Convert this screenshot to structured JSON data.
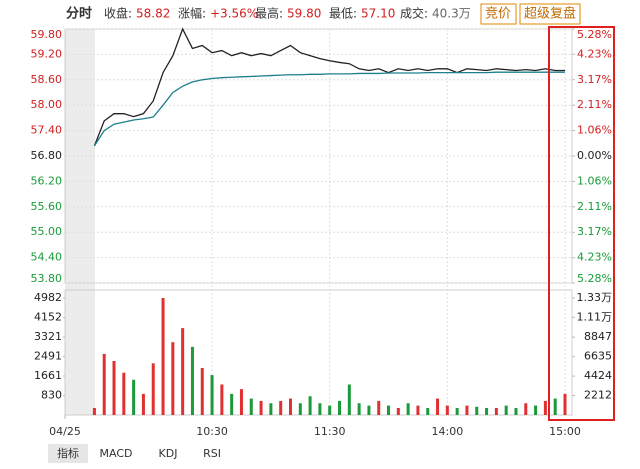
{
  "header": {
    "tab": "分时",
    "items": [
      {
        "label": "收盘:",
        "value": "58.82"
      },
      {
        "label": "涨幅:",
        "value": "+3.56%"
      },
      {
        "label": "最高:",
        "value": "59.80"
      },
      {
        "label": "最低:",
        "value": "57.10"
      },
      {
        "label": "成交:",
        "value": "40.3万"
      }
    ],
    "buttons": [
      "竞价",
      "超级复盘"
    ]
  },
  "tabs": [
    "指标",
    "MACD",
    "KDJ",
    "RSI"
  ],
  "chart_data": [
    {
      "type": "line",
      "x": [
        0,
        5,
        10,
        15,
        20,
        25,
        30,
        35,
        40,
        45,
        50,
        55,
        60,
        65,
        70,
        75,
        80,
        85,
        90,
        95,
        100,
        105,
        110,
        115,
        120,
        125,
        130,
        135,
        140,
        145,
        150,
        155,
        160,
        165,
        170,
        175,
        180,
        185,
        190,
        195,
        200,
        205,
        210,
        215,
        220,
        225,
        230,
        235,
        240
      ],
      "series": [
        {
          "color": "#222222",
          "values": [
            57.04,
            57.63,
            57.8,
            57.8,
            57.73,
            57.8,
            58.1,
            58.77,
            59.17,
            59.8,
            59.34,
            59.41,
            59.24,
            59.29,
            59.17,
            59.24,
            59.17,
            59.22,
            59.17,
            59.29,
            59.41,
            59.24,
            59.17,
            59.1,
            59.05,
            59.01,
            58.98,
            58.86,
            58.82,
            58.86,
            58.77,
            58.86,
            58.82,
            58.86,
            58.82,
            58.86,
            58.86,
            58.77,
            58.86,
            58.84,
            58.82,
            58.86,
            58.84,
            58.82,
            58.84,
            58.82,
            58.86,
            58.82,
            58.82
          ]
        },
        {
          "color": "#1f7f8f",
          "values": [
            57.04,
            57.4,
            57.55,
            57.6,
            57.65,
            57.68,
            57.72,
            58.0,
            58.3,
            58.45,
            58.55,
            58.6,
            58.63,
            58.65,
            58.66,
            58.67,
            58.68,
            58.69,
            58.7,
            58.71,
            58.72,
            58.72,
            58.73,
            58.73,
            58.74,
            58.74,
            58.74,
            58.75,
            58.75,
            58.75,
            58.76,
            58.76,
            58.76,
            58.76,
            58.77,
            58.77,
            58.77,
            58.77,
            58.77,
            58.77,
            58.77,
            58.78,
            58.78,
            58.78,
            58.78,
            58.78,
            58.78,
            58.78,
            58.78
          ]
        }
      ],
      "xlim": [
        -15,
        240
      ],
      "xticks": [
        {
          "value": -15,
          "label": "04/25"
        },
        {
          "value": 60,
          "label": "10:30"
        },
        {
          "value": 120,
          "label": "11:30"
        },
        {
          "value": 180,
          "label": "14:00"
        },
        {
          "value": 240,
          "label": "15:00"
        }
      ],
      "ylim": [
        53.8,
        59.8
      ],
      "yticks": [
        {
          "value": 59.8,
          "label": "59.80"
        },
        {
          "value": 59.2,
          "label": "59.20"
        },
        {
          "value": 58.6,
          "label": "58.60"
        },
        {
          "value": 58.0,
          "label": "58.00"
        },
        {
          "value": 57.4,
          "label": "57.40"
        },
        {
          "value": 56.8,
          "label": "56.80"
        },
        {
          "value": 56.2,
          "label": "56.20"
        },
        {
          "value": 55.6,
          "label": "55.60"
        },
        {
          "value": 55.0,
          "label": "55.00"
        },
        {
          "value": 54.4,
          "label": "54.40"
        },
        {
          "value": 53.8,
          "label": "53.80"
        }
      ],
      "y2lim": [
        -5.28,
        5.28
      ],
      "y2ticks": [
        {
          "value": 5.28,
          "label": "5.28%"
        },
        {
          "value": 4.23,
          "label": "4.23%"
        },
        {
          "value": 3.17,
          "label": "3.17%"
        },
        {
          "value": 2.11,
          "label": "2.11%"
        },
        {
          "value": 1.06,
          "label": "1.06%"
        },
        {
          "value": 0,
          "label": "0.00%"
        },
        {
          "value": -1.06,
          "label": "1.06%"
        },
        {
          "value": -2.11,
          "label": "2.11%"
        },
        {
          "value": -3.17,
          "label": "3.17%"
        },
        {
          "value": -4.23,
          "label": "4.23%"
        },
        {
          "value": -5.28,
          "label": "5.28%"
        }
      ],
      "grid": true
    },
    {
      "type": "bar",
      "x": [
        0,
        5,
        10,
        15,
        20,
        25,
        30,
        35,
        40,
        45,
        50,
        55,
        60,
        65,
        70,
        75,
        80,
        85,
        90,
        95,
        100,
        105,
        110,
        115,
        120,
        125,
        130,
        135,
        140,
        145,
        150,
        155,
        160,
        165,
        170,
        175,
        180,
        185,
        190,
        195,
        200,
        205,
        210,
        215,
        220,
        225,
        230,
        235,
        240
      ],
      "values": [
        300,
        2600,
        2300,
        1800,
        1500,
        900,
        2200,
        4982,
        3100,
        3700,
        2900,
        2000,
        1700,
        1300,
        900,
        1100,
        700,
        600,
        500,
        600,
        700,
        500,
        800,
        500,
        400,
        600,
        1300,
        500,
        400,
        600,
        400,
        300,
        500,
        400,
        300,
        700,
        400,
        300,
        400,
        350,
        300,
        300,
        400,
        300,
        500,
        400,
        600,
        700,
        900
      ],
      "up_color": "#e03030",
      "down_color": "#1a9a3a",
      "ylim": [
        0,
        4982
      ],
      "yticks": [
        4982,
        4152,
        3321,
        2491,
        1661,
        830
      ],
      "y2lim": [
        0,
        13300
      ],
      "y2ticks": [
        {
          "value": 13300,
          "label": "1.33万"
        },
        {
          "value": 11100,
          "label": "1.11万"
        },
        8847,
        6635,
        4424,
        2212
      ]
    }
  ]
}
